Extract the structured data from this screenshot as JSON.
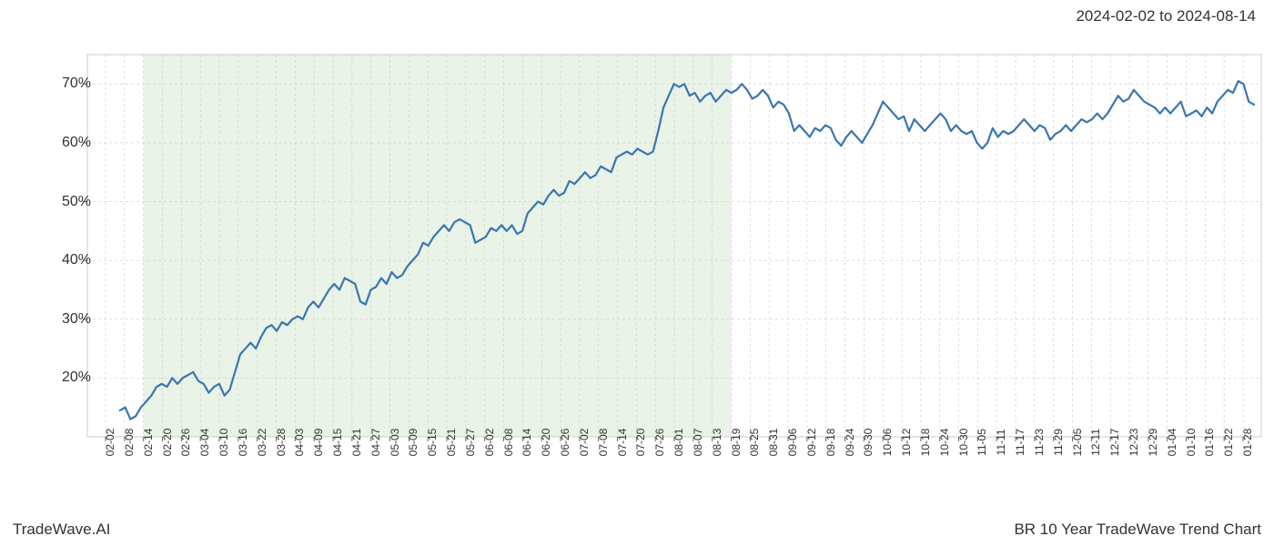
{
  "header": {
    "date_range": "2024-02-02 to 2024-08-14"
  },
  "footer": {
    "brand": "TradeWave.AI",
    "title": "BR 10 Year TradeWave Trend Chart"
  },
  "chart": {
    "type": "line",
    "background_color": "#ffffff",
    "highlight_region": {
      "fill_color": "#d9ead3",
      "fill_opacity": 0.55,
      "x_start_index": 2,
      "x_end_index": 33
    },
    "plot_border_color": "#cccccc",
    "plot_border_width": 1,
    "grid_color": "#cccccc",
    "grid_dash": "3,3",
    "grid_width": 0.6,
    "line_color": "#3a76b0",
    "line_width": 2.2,
    "y_axis": {
      "min": 10,
      "max": 75,
      "ticks": [
        20,
        30,
        40,
        50,
        60,
        70
      ],
      "tick_labels": [
        "20%",
        "30%",
        "40%",
        "50%",
        "60%",
        "70%"
      ],
      "tick_color": "#333333",
      "tick_fontsize": 16
    },
    "x_axis": {
      "tick_labels": [
        "02-02",
        "02-08",
        "02-14",
        "02-20",
        "02-26",
        "03-04",
        "03-10",
        "03-16",
        "03-22",
        "03-28",
        "04-03",
        "04-09",
        "04-15",
        "04-21",
        "04-27",
        "05-03",
        "05-09",
        "05-15",
        "05-21",
        "05-27",
        "06-02",
        "06-08",
        "06-14",
        "06-20",
        "06-26",
        "07-02",
        "07-08",
        "07-14",
        "07-20",
        "07-26",
        "08-01",
        "08-07",
        "08-13",
        "08-19",
        "08-25",
        "08-31",
        "09-06",
        "09-12",
        "09-18",
        "09-24",
        "09-30",
        "10-06",
        "10-12",
        "10-18",
        "10-24",
        "10-30",
        "11-05",
        "11-11",
        "11-17",
        "11-23",
        "11-29",
        "12-05",
        "12-11",
        "12-17",
        "12-23",
        "12-29",
        "01-04",
        "01-10",
        "01-16",
        "01-22",
        "01-28"
      ],
      "tick_color": "#333333",
      "tick_fontsize": 12,
      "rotation": -90
    },
    "series": {
      "values": [
        14.5,
        15,
        13,
        13.5,
        15,
        16,
        17,
        18.5,
        19,
        18.5,
        20,
        19,
        20,
        20.5,
        21,
        19.5,
        19,
        17.5,
        18.5,
        19,
        17,
        18,
        21,
        24,
        25,
        26,
        25,
        27,
        28.5,
        29,
        28,
        29.5,
        29,
        30,
        30.5,
        30,
        32,
        33,
        32,
        33.5,
        35,
        36,
        35,
        37,
        36.5,
        36,
        33,
        32.5,
        35,
        35.5,
        37,
        36,
        38,
        37,
        37.5,
        39,
        40,
        41,
        43,
        42.5,
        44,
        45,
        46,
        45,
        46.5,
        47,
        46.5,
        46,
        43,
        43.5,
        44,
        45.5,
        45,
        46,
        45,
        46,
        44.5,
        45,
        48,
        49,
        50,
        49.5,
        51,
        52,
        51,
        51.5,
        53.5,
        53,
        54,
        55,
        54,
        54.5,
        56,
        55.5,
        55,
        57.5,
        58,
        58.5,
        58,
        59,
        58.5,
        58,
        58.5,
        62,
        66,
        68,
        70,
        69.5,
        70,
        68,
        68.5,
        67,
        68,
        68.5,
        67,
        68,
        69,
        68.5,
        69,
        70,
        69,
        67.5,
        68,
        69,
        68,
        66,
        67,
        66.5,
        65,
        62,
        63,
        62,
        61,
        62.5,
        62,
        63,
        62.5,
        60.5,
        59.5,
        61,
        62,
        61,
        60,
        61.5,
        63,
        65,
        67,
        66,
        65,
        64,
        64.5,
        62,
        64,
        63,
        62,
        63,
        64,
        65,
        64,
        62,
        63,
        62,
        61.5,
        62,
        60,
        59,
        60,
        62.5,
        61,
        62,
        61.5,
        62,
        63,
        64,
        63,
        62,
        63,
        62.5,
        60.5,
        61.5,
        62,
        63,
        62,
        63,
        64,
        63.5,
        64,
        65,
        64,
        65,
        66.5,
        68,
        67,
        67.5,
        69,
        68,
        67,
        66.5,
        66,
        65,
        66,
        65,
        66,
        67,
        64.5,
        65,
        65.5,
        64.5,
        66,
        65,
        67,
        68,
        69,
        68.5,
        70.5,
        70,
        67,
        66.5
      ]
    }
  }
}
